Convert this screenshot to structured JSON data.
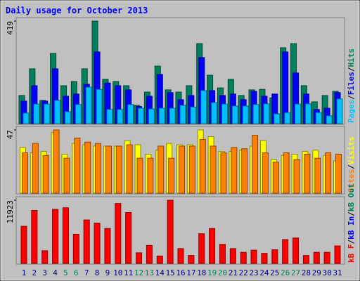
{
  "chart_data": [
    {
      "type": "bar",
      "title": "Daily usage for October 2013",
      "ylim": [
        0,
        419
      ],
      "yticks": [
        419
      ],
      "series": [
        {
          "color": "#00805c",
          "values": [
            115,
            224,
            95,
            287,
            155,
            172,
            224,
            419,
            181,
            172,
            155,
            75,
            129,
            235,
            138,
            129,
            155,
            327,
            198,
            146,
            181,
            115,
            138,
            140,
            105,
            310,
            327,
            155,
            89,
            115,
            132
          ]
        },
        {
          "color": "#0000ff",
          "values": [
            92,
            155,
            92,
            224,
            112,
            121,
            161,
            293,
            166,
            155,
            138,
            70,
            112,
            201,
            127,
            98,
            115,
            270,
            135,
            115,
            121,
            98,
            132,
            112,
            121,
            293,
            207,
            121,
            58,
            63,
            127
          ]
        },
        {
          "color": "#00c0ff",
          "values": [
            43,
            80,
            80,
            95,
            49,
            78,
            149,
            140,
            58,
            58,
            78,
            63,
            60,
            63,
            63,
            75,
            68,
            135,
            86,
            80,
            72,
            72,
            78,
            81,
            40,
            45,
            80,
            81,
            45,
            32,
            101
          ]
        }
      ],
      "legend": [
        {
          "name": "Pages",
          "color": "#00c0ff"
        },
        {
          "name": "Files",
          "color": "#0000ff"
        },
        {
          "name": "Hits",
          "color": "#00805c"
        }
      ],
      "legend_separator": "/"
    },
    {
      "type": "bar",
      "ylim": [
        0,
        47
      ],
      "yticks": [
        47
      ],
      "series": [
        {
          "color": "#ffff00",
          "values": [
            34,
            30,
            31,
            45,
            29,
            37,
            36,
            35,
            35,
            35,
            39,
            36,
            29,
            32,
            37,
            36,
            36,
            47,
            42,
            31,
            31,
            32,
            35,
            39,
            25,
            28,
            29,
            31,
            32,
            28,
            24
          ]
        },
        {
          "color": "#ff8000",
          "values": [
            30,
            37,
            28,
            47,
            26,
            41,
            38,
            37,
            35,
            35,
            36,
            26,
            26,
            35,
            26,
            35,
            35,
            40,
            35,
            30,
            34,
            33,
            43,
            30,
            23,
            30,
            25,
            29,
            26,
            30,
            29
          ]
        }
      ],
      "legend": [
        {
          "name": "Sites",
          "color": "#ff8000"
        },
        {
          "name": "Visits",
          "color": "#ffff00"
        }
      ],
      "legend_separator": "/"
    },
    {
      "type": "bar",
      "ylim": [
        0,
        11923
      ],
      "yticks": [
        11923
      ],
      "categories": [
        "1",
        "2",
        "3",
        "4",
        "5",
        "6",
        "7",
        "8",
        "9",
        "10",
        "11",
        "12",
        "13",
        "14",
        "15",
        "16",
        "17",
        "18",
        "19",
        "20",
        "21",
        "22",
        "23",
        "24",
        "25",
        "26",
        "27",
        "28",
        "29",
        "30",
        "31"
      ],
      "weekend": [
        "5",
        "6",
        "12",
        "13",
        "19",
        "20",
        "26",
        "27"
      ],
      "weekend_color": "#00805c",
      "category_color": "#000080",
      "series": [
        {
          "color": "#ff0000",
          "values": [
            7000,
            10000,
            2400,
            10200,
            10500,
            5500,
            8200,
            7600,
            6600,
            11300,
            9600,
            2000,
            3400,
            1400,
            11923,
            2800,
            1500,
            5600,
            6600,
            3600,
            2800,
            2100,
            2500,
            1900,
            2600,
            4500,
            4800,
            1500,
            2100,
            2100,
            3300
          ]
        }
      ],
      "legend": [
        {
          "name": "kB F",
          "color": "#ff0000"
        },
        {
          "name": "kB In",
          "color": "#0000ff"
        },
        {
          "name": "kB Out",
          "color": "#00805c"
        }
      ],
      "legend_separator": "/"
    }
  ]
}
